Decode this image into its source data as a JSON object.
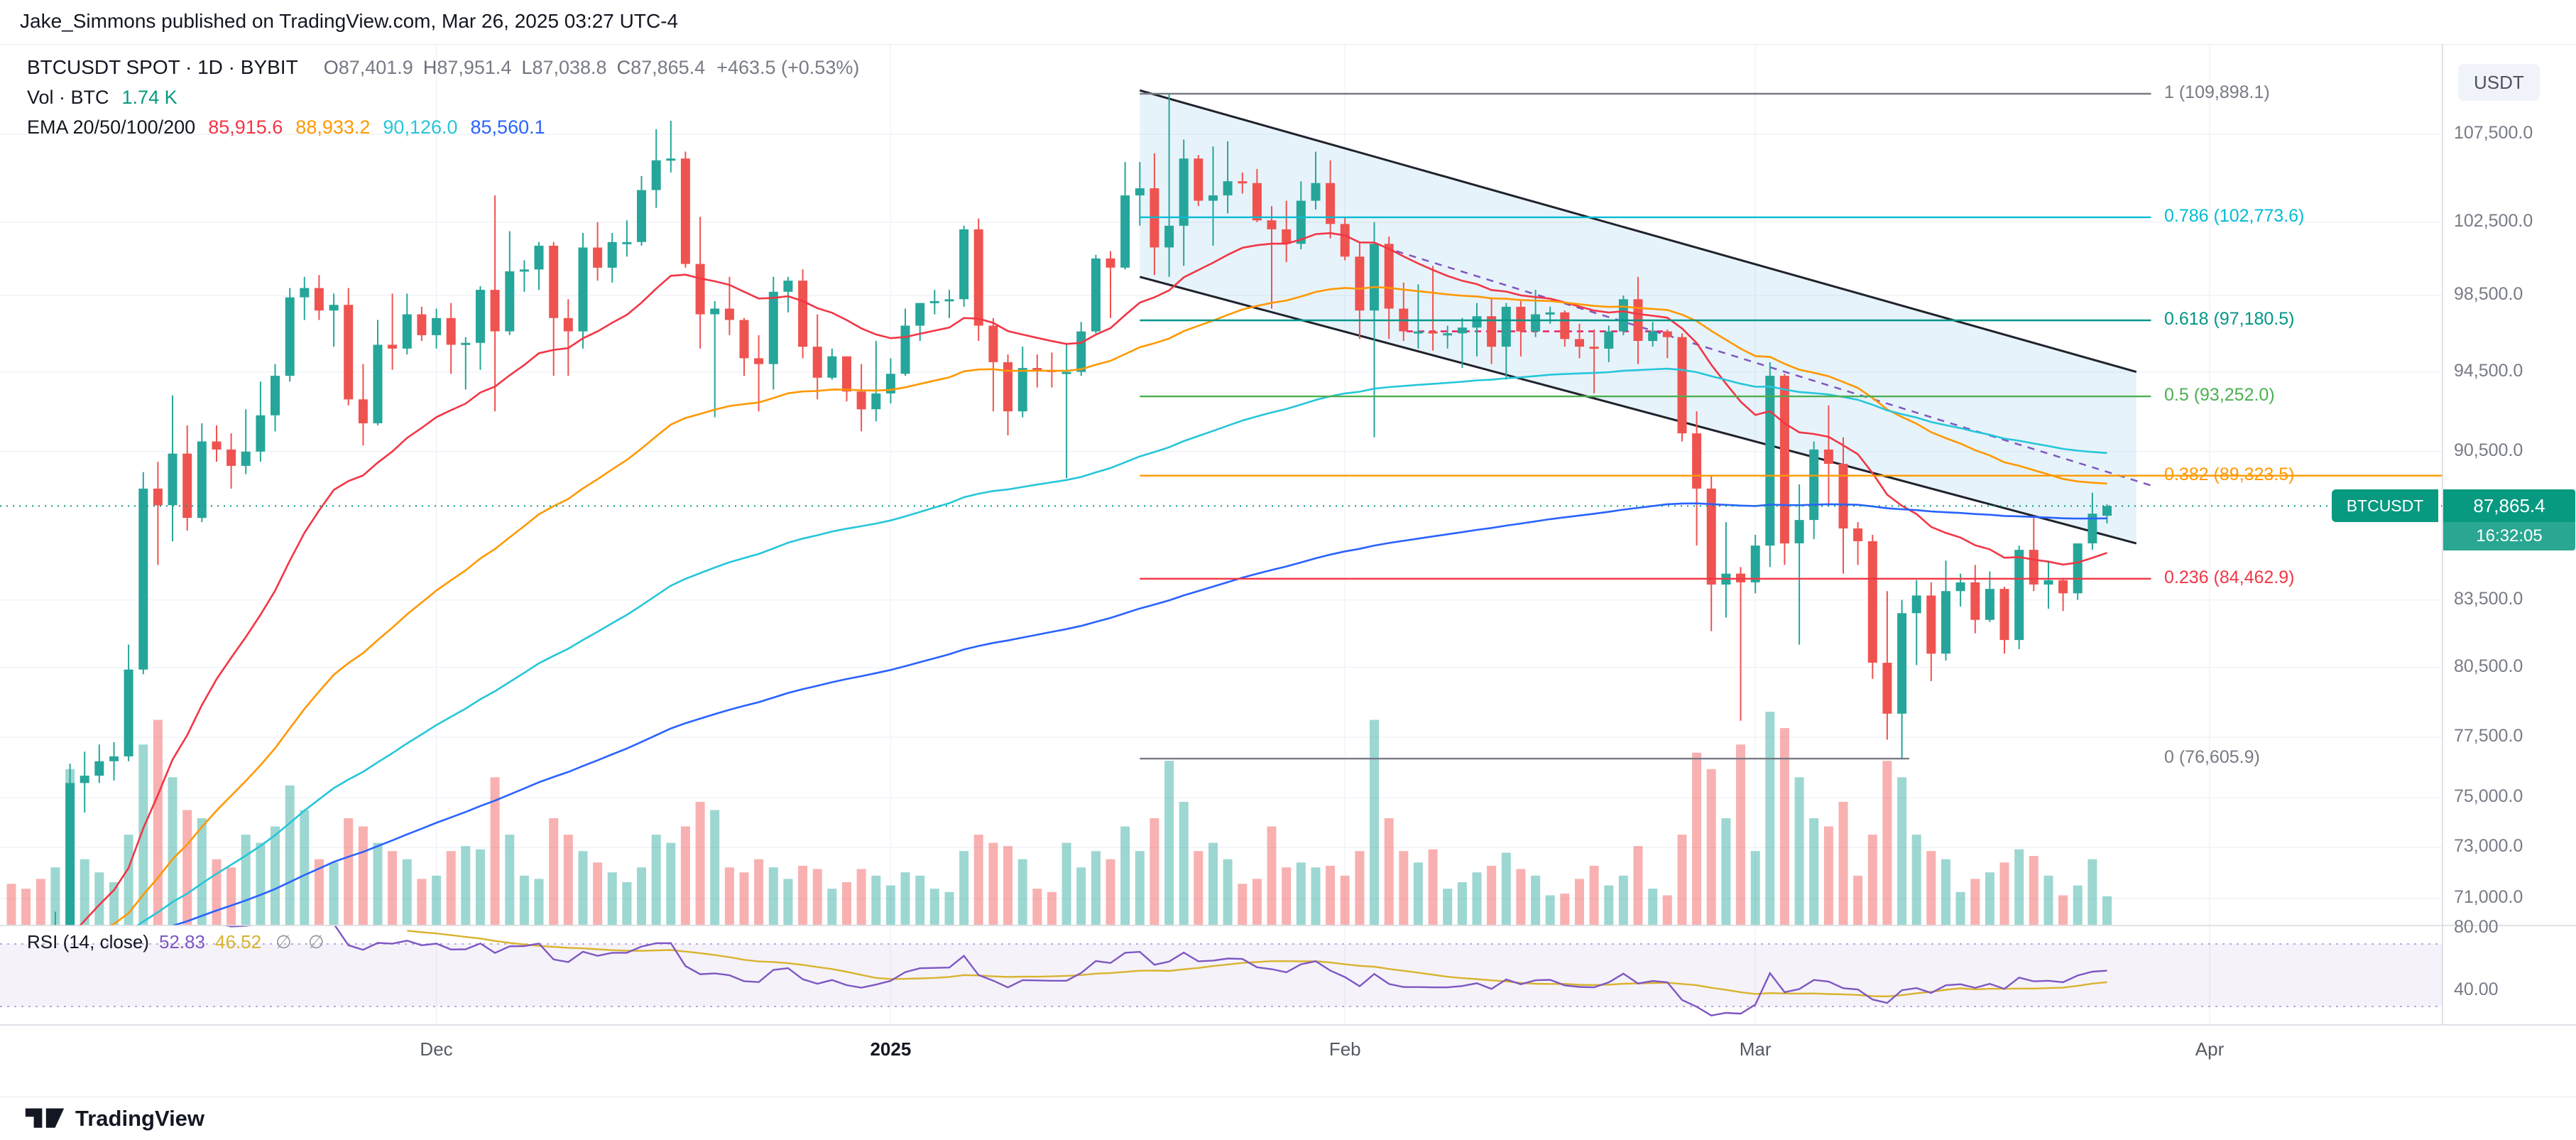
{
  "header": {
    "publisher_line": "Jake_Simmons published on TradingView.com, Mar 26, 2025 03:27 UTC-4"
  },
  "legend": {
    "symbol_line": {
      "symbol": "BTCUSDT SPOT · 1D · BYBIT",
      "o_label": "O",
      "o": "87,401.9",
      "h_label": "H",
      "h": "87,951.4",
      "l_label": "L",
      "l": "87,038.8",
      "c_label": "C",
      "c": "87,865.4",
      "change": "+463.5 (+0.53%)"
    },
    "volume_line": {
      "label": "Vol · BTC",
      "value": "1.74 K"
    },
    "ema_line": {
      "label": "EMA 20/50/100/200",
      "values": [
        "85,915.6",
        "88,933.2",
        "90,126.0",
        "85,560.1"
      ]
    },
    "rsi_line": {
      "label": "RSI (14, close)",
      "rsi_value": "52.83",
      "ma_value": "46.52",
      "empty_slots": "∅ ∅"
    }
  },
  "axis": {
    "currency_label": "USDT",
    "price_ticks": [
      {
        "label": "107,500.0",
        "price": 107500
      },
      {
        "label": "102,500.0",
        "price": 102500
      },
      {
        "label": "98,500.0",
        "price": 98500
      },
      {
        "label": "94,500.0",
        "price": 94500
      },
      {
        "label": "90,500.0",
        "price": 90500
      },
      {
        "label": "83,500.0",
        "price": 83500
      },
      {
        "label": "80,500.0",
        "price": 80500
      },
      {
        "label": "77,500.0",
        "price": 77500
      },
      {
        "label": "75,000.0",
        "price": 75000
      },
      {
        "label": "73,000.0",
        "price": 73000
      },
      {
        "label": "71,000.0",
        "price": 71000
      }
    ],
    "rsi_ticks": [
      {
        "label": "80.00",
        "value": 80
      },
      {
        "label": "40.00",
        "value": 40
      }
    ],
    "time_ticks": [
      {
        "label": "Dec",
        "index": 29,
        "bold": false
      },
      {
        "label": "2025",
        "index": 60,
        "bold": true
      },
      {
        "label": "Feb",
        "index": 91,
        "bold": false
      },
      {
        "label": "Mar",
        "index": 119,
        "bold": false
      },
      {
        "label": "Apr",
        "index": 150,
        "bold": false
      }
    ],
    "price_badge": {
      "symbol": "BTCUSDT",
      "price": "87,865.4",
      "countdown": "16:32:05",
      "color": "#089981"
    }
  },
  "fib": {
    "levels": [
      {
        "label": "1 (109,898.1)",
        "price": 109898.1,
        "color": "#787b86",
        "i1": 77,
        "i2": 146,
        "to_axis": false
      },
      {
        "label": "0.786 (102,773.6)",
        "price": 102773.6,
        "color": "#00bcd4",
        "i1": 77,
        "i2": 146,
        "to_axis": false
      },
      {
        "label": "0.618 (97,180.5)",
        "price": 97180.5,
        "color": "#009688",
        "i1": 77,
        "i2": 146,
        "to_axis": false
      },
      {
        "label": "0.5 (93,252.0)",
        "price": 93252.0,
        "color": "#4caf50",
        "i1": 77,
        "i2": 146,
        "to_axis": false
      },
      {
        "label": "0.382 (89,323.5)",
        "price": 89323.5,
        "color": "#ff9800",
        "i1": 77,
        "i2": 146,
        "to_axis": true
      },
      {
        "label": "0.236 (84,462.9)",
        "price": 84462.9,
        "color": "#f23645",
        "i1": 77,
        "i2": 146,
        "to_axis": false
      },
      {
        "label": "0 (76,605.9)",
        "price": 76605.9,
        "color": "#787b86",
        "i1": 77,
        "i2": 129.5,
        "to_axis": false
      }
    ]
  },
  "footer": {
    "brand": "TradingView"
  },
  "chart_data": {
    "type": "candlestick+volume+rsi",
    "symbol": "BTCUSDT",
    "market": "SPOT",
    "exchange": "BYBIT",
    "interval": "1D",
    "scale": "log",
    "start_date": "2024-11-02",
    "price_unit": "USD thousands per candle entry [open,high,low,close,volume_kBTC]",
    "price_line": 87.8654,
    "colors": {
      "up": "#26a69a",
      "down": "#ef5350",
      "vol_up": "rgba(38,166,154,0.45)",
      "vol_down": "rgba(239,83,80,0.45)",
      "up_strong": "#089981"
    },
    "emas": [
      {
        "period": 20,
        "color": "#f23645"
      },
      {
        "period": 50,
        "color": "#ff9800"
      },
      {
        "period": 100,
        "color": "#26c6da"
      },
      {
        "period": 200,
        "color": "#2962ff"
      }
    ],
    "rsi": {
      "period": 14,
      "color": "#7e57c2",
      "ma_color": "#d9b32e",
      "band_fill": "rgba(126,87,194,0.08)",
      "band_color": "#a58fd0",
      "bands": [
        70,
        30
      ]
    },
    "channel": {
      "fill": "rgba(121,189,226,0.18)",
      "color": "#20222c",
      "upper": {
        "i1": 77,
        "p1": 110100,
        "i2": 145,
        "p2": 94500
      },
      "lower": {
        "i1": 77,
        "p1": 99500,
        "i2": 145,
        "p2": 86100
      }
    },
    "trendline_dashed": {
      "i1": 94.5,
      "p1": 100900,
      "i2": 146,
      "p2": 88850,
      "color": "#7e57c2"
    },
    "hline_dashed": {
      "p": 96600,
      "i1": 95.2,
      "i2": 112.8,
      "color": "#e91e63"
    },
    "ohlcv": [
      [
        69.4,
        69.9,
        68.8,
        69.0,
        2.5
      ],
      [
        69.0,
        69.4,
        67.9,
        68.7,
        2.2
      ],
      [
        68.7,
        69.5,
        66.8,
        67.9,
        2.8
      ],
      [
        67.9,
        70.5,
        67.5,
        69.4,
        3.5
      ],
      [
        69.4,
        76.4,
        69.0,
        75.6,
        9.5
      ],
      [
        75.6,
        76.9,
        74.4,
        75.9,
        4.0
      ],
      [
        75.9,
        77.2,
        75.6,
        76.5,
        3.2
      ],
      [
        76.5,
        77.3,
        75.7,
        76.7,
        2.6
      ],
      [
        76.7,
        81.5,
        76.5,
        80.4,
        5.5
      ],
      [
        80.4,
        89.5,
        80.2,
        88.7,
        11.0
      ],
      [
        88.7,
        90.0,
        85.1,
        87.9,
        12.5
      ],
      [
        87.9,
        93.3,
        86.2,
        90.4,
        9.0
      ],
      [
        90.4,
        91.8,
        86.7,
        87.3,
        7.0
      ],
      [
        87.3,
        91.9,
        87.1,
        91.0,
        6.5
      ],
      [
        91.0,
        91.8,
        90.0,
        90.6,
        4.0
      ],
      [
        90.6,
        91.4,
        88.7,
        89.8,
        3.5
      ],
      [
        89.8,
        92.6,
        89.4,
        90.5,
        5.5
      ],
      [
        90.5,
        94.0,
        90.0,
        92.3,
        5.0
      ],
      [
        92.3,
        94.9,
        91.5,
        94.3,
        6.0
      ],
      [
        94.3,
        98.9,
        94.0,
        98.4,
        8.5
      ],
      [
        98.4,
        99.5,
        97.2,
        98.9,
        7.0
      ],
      [
        98.9,
        99.6,
        97.2,
        97.7,
        4.0
      ],
      [
        97.7,
        98.6,
        95.8,
        98.0,
        3.8
      ],
      [
        98.0,
        98.9,
        92.8,
        93.1,
        6.5
      ],
      [
        93.1,
        94.9,
        90.8,
        91.9,
        6.0
      ],
      [
        91.9,
        97.2,
        91.8,
        95.9,
        5.0
      ],
      [
        95.9,
        98.6,
        94.6,
        95.7,
        4.5
      ],
      [
        95.7,
        98.6,
        95.4,
        97.5,
        4.0
      ],
      [
        97.5,
        97.9,
        96.1,
        96.4,
        2.8
      ],
      [
        96.4,
        97.8,
        95.7,
        97.3,
        3.0
      ],
      [
        97.3,
        98.1,
        94.4,
        95.9,
        4.5
      ],
      [
        95.9,
        96.3,
        93.6,
        96.0,
        4.8
      ],
      [
        96.0,
        99.0,
        94.6,
        98.8,
        4.6
      ],
      [
        98.8,
        104.0,
        92.5,
        96.6,
        9.0
      ],
      [
        96.6,
        102.0,
        96.4,
        99.8,
        5.5
      ],
      [
        99.8,
        100.4,
        98.7,
        99.9,
        3.0
      ],
      [
        99.9,
        101.4,
        98.8,
        101.2,
        2.8
      ],
      [
        101.2,
        101.4,
        94.3,
        97.3,
        6.5
      ],
      [
        97.3,
        98.3,
        94.3,
        96.6,
        5.5
      ],
      [
        96.6,
        101.9,
        95.7,
        101.1,
        4.5
      ],
      [
        101.1,
        102.5,
        99.3,
        100.0,
        3.8
      ],
      [
        100.0,
        101.9,
        99.2,
        101.4,
        3.2
      ],
      [
        101.4,
        102.6,
        100.6,
        101.4,
        2.6
      ],
      [
        101.4,
        105.1,
        101.2,
        104.3,
        3.5
      ],
      [
        104.3,
        107.8,
        103.3,
        106.0,
        5.5
      ],
      [
        106.0,
        108.3,
        105.3,
        106.1,
        5.0
      ],
      [
        106.1,
        106.5,
        100.0,
        100.2,
        6.0
      ],
      [
        100.2,
        102.8,
        95.7,
        97.5,
        7.5
      ],
      [
        97.5,
        98.2,
        92.2,
        97.8,
        7.0
      ],
      [
        97.8,
        99.5,
        96.4,
        97.2,
        3.5
      ],
      [
        97.2,
        97.3,
        94.3,
        95.2,
        3.2
      ],
      [
        95.2,
        96.4,
        92.5,
        94.9,
        4.0
      ],
      [
        94.9,
        99.5,
        93.6,
        98.7,
        3.5
      ],
      [
        98.7,
        99.5,
        97.6,
        99.3,
        2.8
      ],
      [
        99.3,
        99.9,
        95.2,
        95.8,
        3.6
      ],
      [
        95.8,
        97.5,
        93.1,
        94.2,
        3.4
      ],
      [
        94.2,
        95.7,
        94.1,
        95.3,
        2.2
      ],
      [
        95.3,
        95.3,
        93.0,
        93.5,
        2.6
      ],
      [
        93.5,
        94.9,
        91.5,
        92.6,
        3.4
      ],
      [
        92.6,
        96.1,
        92.0,
        93.4,
        3.0
      ],
      [
        93.4,
        95.2,
        92.9,
        94.4,
        2.4
      ],
      [
        94.4,
        97.8,
        94.3,
        96.9,
        3.2
      ],
      [
        96.9,
        98.1,
        96.1,
        98.1,
        3.0
      ],
      [
        98.1,
        98.8,
        97.5,
        98.2,
        2.2
      ],
      [
        98.2,
        98.8,
        97.3,
        98.3,
        2.0
      ],
      [
        98.3,
        102.3,
        97.9,
        102.1,
        4.5
      ],
      [
        102.1,
        102.7,
        96.1,
        96.9,
        5.5
      ],
      [
        96.9,
        97.3,
        92.5,
        95.0,
        5.0
      ],
      [
        95.0,
        95.4,
        91.3,
        92.5,
        4.8
      ],
      [
        92.5,
        95.8,
        92.2,
        94.7,
        4.0
      ],
      [
        94.7,
        95.4,
        93.7,
        94.6,
        2.2
      ],
      [
        94.6,
        95.5,
        93.7,
        94.5,
        2.0
      ],
      [
        94.5,
        95.9,
        89.2,
        94.5,
        5.0
      ],
      [
        94.5,
        97.1,
        94.3,
        96.6,
        3.5
      ],
      [
        96.6,
        100.7,
        96.5,
        100.5,
        4.5
      ],
      [
        100.5,
        100.9,
        97.3,
        100.0,
        4.0
      ],
      [
        100.0,
        105.9,
        99.9,
        104.0,
        6.0
      ],
      [
        104.0,
        105.9,
        102.3,
        104.4,
        4.5
      ],
      [
        104.4,
        106.4,
        99.6,
        101.1,
        6.5
      ],
      [
        101.1,
        109.9,
        99.5,
        102.3,
        10.0
      ],
      [
        102.3,
        107.2,
        100.1,
        106.1,
        7.5
      ],
      [
        106.1,
        106.3,
        103.4,
        103.7,
        4.5
      ],
      [
        103.7,
        106.8,
        101.2,
        104.0,
        5.0
      ],
      [
        104.0,
        107.1,
        103.0,
        104.8,
        4.0
      ],
      [
        104.8,
        105.3,
        104.1,
        104.7,
        2.5
      ],
      [
        104.7,
        105.5,
        102.5,
        102.6,
        2.8
      ],
      [
        102.6,
        103.4,
        97.8,
        102.1,
        6.0
      ],
      [
        102.1,
        103.7,
        100.3,
        101.3,
        3.5
      ],
      [
        101.3,
        104.8,
        101.0,
        103.7,
        3.8
      ],
      [
        103.7,
        106.5,
        103.2,
        104.7,
        3.5
      ],
      [
        104.7,
        106.0,
        101.6,
        102.4,
        3.6
      ],
      [
        102.4,
        102.8,
        100.4,
        100.6,
        3.0
      ],
      [
        100.6,
        101.4,
        96.2,
        97.7,
        4.5
      ],
      [
        97.7,
        102.5,
        91.2,
        101.3,
        12.5
      ],
      [
        101.3,
        101.7,
        96.2,
        97.8,
        6.5
      ],
      [
        97.8,
        99.2,
        96.1,
        96.6,
        4.5
      ],
      [
        96.6,
        99.1,
        95.7,
        96.6,
        3.8
      ],
      [
        96.6,
        100.1,
        95.6,
        96.5,
        4.6
      ],
      [
        96.5,
        96.9,
        95.7,
        96.5,
        2.2
      ],
      [
        96.5,
        97.3,
        94.7,
        96.8,
        2.6
      ],
      [
        96.8,
        98.1,
        95.3,
        97.4,
        3.2
      ],
      [
        97.4,
        98.4,
        94.9,
        95.8,
        3.6
      ],
      [
        95.8,
        98.1,
        94.1,
        97.9,
        4.4
      ],
      [
        97.9,
        98.2,
        95.3,
        96.6,
        3.4
      ],
      [
        96.6,
        98.8,
        96.3,
        97.5,
        3.0
      ],
      [
        97.5,
        97.9,
        97.0,
        97.6,
        1.8
      ],
      [
        97.6,
        97.7,
        95.8,
        96.2,
        1.9
      ],
      [
        96.2,
        97.0,
        95.2,
        95.8,
        2.8
      ],
      [
        95.8,
        96.7,
        93.4,
        95.7,
        3.6
      ],
      [
        95.7,
        96.9,
        95.0,
        96.6,
        2.4
      ],
      [
        96.6,
        98.5,
        96.4,
        98.3,
        3.0
      ],
      [
        98.3,
        99.5,
        94.9,
        96.1,
        4.8
      ],
      [
        96.1,
        97.1,
        95.8,
        96.6,
        2.2
      ],
      [
        96.6,
        96.7,
        95.2,
        96.3,
        1.8
      ],
      [
        96.3,
        96.5,
        91.0,
        91.4,
        5.5
      ],
      [
        91.4,
        92.5,
        86.0,
        88.7,
        10.5
      ],
      [
        88.7,
        89.3,
        82.1,
        84.2,
        9.5
      ],
      [
        84.2,
        87.1,
        82.7,
        84.7,
        6.5
      ],
      [
        84.7,
        85.0,
        78.2,
        84.3,
        11.0
      ],
      [
        84.3,
        86.5,
        83.8,
        86.0,
        4.5
      ],
      [
        86.0,
        95.0,
        85.0,
        94.3,
        13.0
      ],
      [
        94.3,
        94.4,
        85.1,
        86.1,
        12.0
      ],
      [
        86.1,
        88.9,
        81.5,
        87.2,
        9.0
      ],
      [
        87.2,
        91.0,
        86.3,
        90.6,
        6.5
      ],
      [
        90.6,
        92.8,
        87.9,
        89.9,
        6.0
      ],
      [
        89.9,
        91.2,
        84.7,
        86.8,
        7.5
      ],
      [
        86.8,
        87.1,
        85.1,
        86.2,
        3.0
      ],
      [
        86.2,
        86.5,
        80.0,
        80.7,
        5.5
      ],
      [
        80.7,
        83.9,
        77.4,
        78.5,
        10.0
      ],
      [
        78.5,
        83.5,
        76.6,
        82.9,
        9.0
      ],
      [
        82.9,
        84.4,
        80.6,
        83.7,
        5.5
      ],
      [
        83.7,
        84.3,
        79.9,
        81.1,
        4.5
      ],
      [
        81.1,
        85.3,
        80.8,
        83.9,
        4.0
      ],
      [
        83.9,
        84.7,
        83.2,
        84.3,
        2.0
      ],
      [
        84.3,
        85.1,
        82.0,
        82.6,
        2.8
      ],
      [
        82.6,
        84.8,
        82.5,
        84.0,
        3.2
      ],
      [
        84.0,
        84.1,
        81.1,
        81.7,
        3.8
      ],
      [
        81.7,
        86.0,
        81.3,
        85.8,
        4.6
      ],
      [
        85.8,
        87.4,
        83.9,
        84.2,
        4.2
      ],
      [
        84.2,
        85.3,
        83.1,
        84.4,
        3.0
      ],
      [
        84.4,
        84.5,
        83.0,
        83.8,
        1.8
      ],
      [
        83.8,
        86.1,
        83.5,
        86.1,
        2.4
      ],
      [
        86.1,
        88.5,
        85.8,
        87.5,
        4.0
      ],
      [
        87.4019,
        87.9514,
        87.0388,
        87.8654,
        1.74
      ]
    ]
  }
}
